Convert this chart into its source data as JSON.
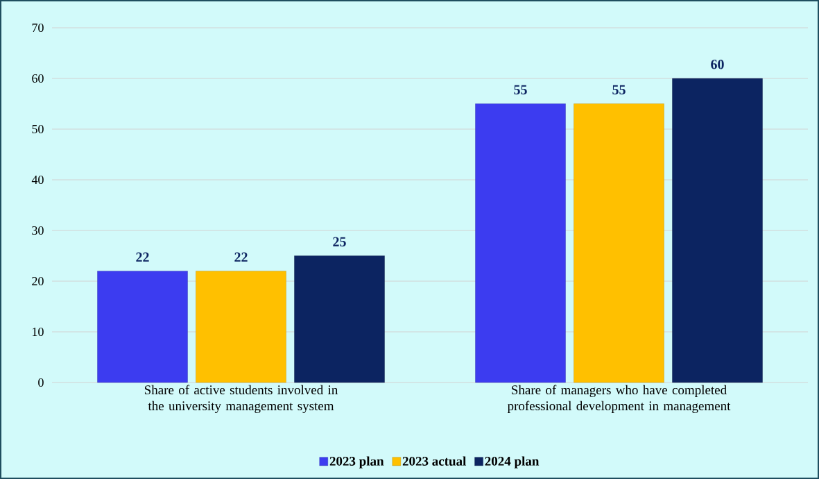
{
  "chart_data": {
    "type": "bar",
    "categories": [
      "Share of active students involved in the university management system",
      "Share of managers who have completed professional development in management"
    ],
    "series": [
      {
        "name": "2023 plan",
        "color": "#3c3cf0",
        "values": [
          22,
          55
        ]
      },
      {
        "name": "2023 actual",
        "color": "#ffc000",
        "values": [
          22,
          55
        ]
      },
      {
        "name": "2024 plan",
        "color": "#0c2461",
        "values": [
          25,
          60
        ]
      }
    ],
    "ylim": [
      0,
      70
    ],
    "yticks": [
      0,
      10,
      20,
      30,
      40,
      50,
      60,
      70
    ],
    "grid": "y",
    "legend": "bottom",
    "data_labels": true
  }
}
